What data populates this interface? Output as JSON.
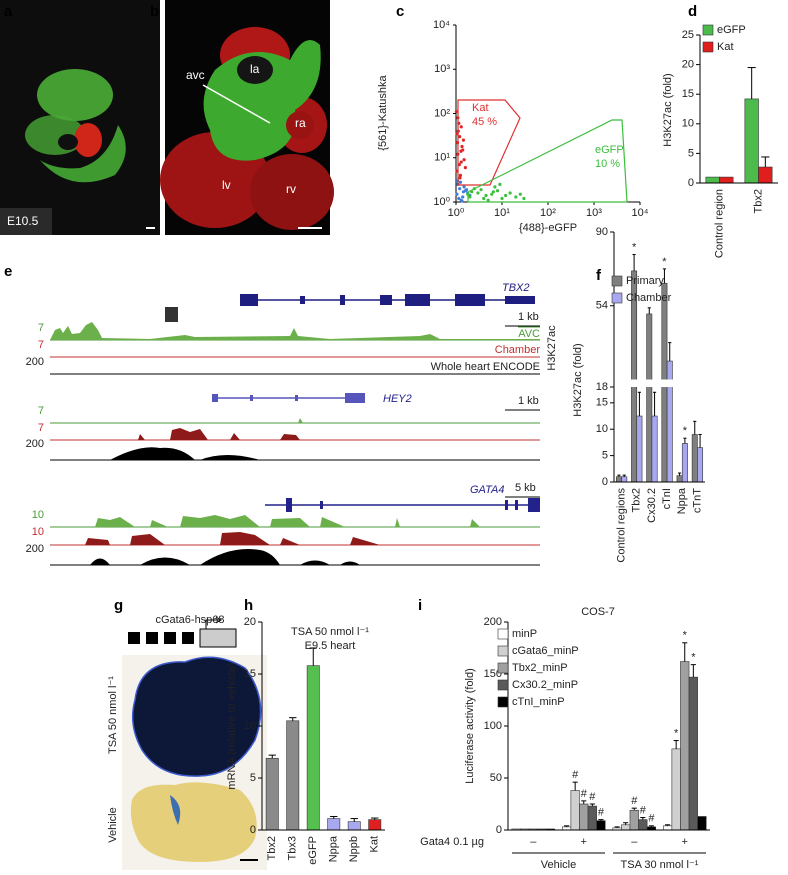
{
  "figure": {
    "panel_labels": [
      "a",
      "b",
      "c",
      "d",
      "e",
      "f",
      "g",
      "h",
      "i"
    ],
    "a": {
      "stage": "E10.5"
    },
    "b": {
      "labels": [
        "avc",
        "la",
        "ra",
        "lv",
        "rv"
      ]
    },
    "e": {
      "loci": [
        {
          "gene": "TBX2",
          "scale": "1 kb",
          "track_max": [
            7,
            7,
            200
          ]
        },
        {
          "gene": "HEY2",
          "scale": "1 kb",
          "track_max": [
            7,
            7,
            200
          ]
        },
        {
          "gene": "GATA4",
          "scale": "5 kb",
          "track_max": [
            10,
            10,
            200
          ]
        }
      ],
      "track_names": [
        "AVC",
        "Chamber",
        "Whole heart ENCODE"
      ],
      "mark": "H3K27ac"
    },
    "g": {
      "construct": "cGata6-hsp68",
      "conditions": [
        "TSA 50 nmol l⁻¹",
        "Vehicle"
      ]
    }
  },
  "chart_data": [
    {
      "type": "scatter",
      "xlabel": "{488}-eGFP",
      "ylabel": "{561}-Katushka",
      "xlog": true,
      "ylog": true,
      "xlim": [
        1,
        10000
      ],
      "ylim": [
        1,
        10000
      ],
      "xticks": [
        {
          "value": 1,
          "label": "10⁰"
        },
        {
          "value": 10,
          "label": "10¹"
        },
        {
          "value": 100,
          "label": "10²"
        },
        {
          "value": 1000,
          "label": "10³"
        },
        {
          "value": 10000,
          "label": "10⁴"
        }
      ],
      "yticks": [
        {
          "value": 1,
          "label": "10⁰"
        },
        {
          "value": 10,
          "label": "10¹"
        },
        {
          "value": 100,
          "label": "10²"
        },
        {
          "value": 1000,
          "label": "10³"
        },
        {
          "value": 10000,
          "label": "10⁴"
        }
      ],
      "series": [
        {
          "color": "#e02424",
          "x": [
            1.05,
            1.1,
            1.2,
            1.3,
            1.15,
            1.4,
            1.08,
            1.25,
            1.5,
            1.12,
            1.35,
            1.02,
            1.18,
            1.45,
            1.22,
            1.3,
            1.1,
            1.6,
            1.28,
            1.06
          ],
          "y": [
            5,
            12,
            30,
            8,
            60,
            15,
            22,
            4,
            9,
            40,
            18,
            110,
            7,
            25,
            3.5,
            50,
            80,
            6,
            14,
            35
          ]
        },
        {
          "color": "#3f7fd8",
          "x": [
            1.05,
            1.2,
            1.4,
            1.6,
            1.1,
            1.3,
            1.8,
            1.5,
            1.15,
            2.0,
            1.25,
            1.7,
            1.35,
            1.08,
            1.45
          ],
          "y": [
            1.5,
            2,
            1.3,
            1.8,
            2.5,
            1.1,
            1.6,
            2.2,
            1.2,
            1.4,
            2.8,
            1.9,
            1.05,
            3,
            1.7
          ]
        },
        {
          "color": "#3cbf3c",
          "x": [
            2,
            3,
            4,
            6,
            8,
            12,
            2.5,
            5,
            15,
            20,
            3.5,
            7,
            10,
            25,
            2.2,
            4.5,
            9,
            30,
            1.8,
            6.5
          ],
          "y": [
            1.3,
            1.6,
            1.2,
            1.5,
            1.8,
            1.4,
            2,
            1.1,
            1.6,
            1.3,
            1.9,
            2.2,
            1.2,
            1.5,
            1.7,
            1.4,
            2.5,
            1.2,
            1.5,
            1.7
          ]
        }
      ],
      "gates": [
        {
          "name": "Kat",
          "label": "45 %",
          "color": "#e03030"
        },
        {
          "name": "eGFP",
          "label": "10 %",
          "color": "#3cbf3c"
        }
      ]
    },
    {
      "type": "bar",
      "ylabel": "H3K27ac (fold)",
      "categories": [
        "Control region",
        "Tbx2"
      ],
      "ylim": [
        0,
        25
      ],
      "yticks": [
        0,
        5,
        10,
        15,
        20,
        25
      ],
      "series": [
        {
          "name": "eGFP",
          "color": "#4cbb4c",
          "values": [
            1,
            14.2
          ],
          "errors": [
            null,
            5.3
          ]
        },
        {
          "name": "Kat",
          "color": "#e01e1e",
          "values": [
            1,
            2.7
          ],
          "errors": [
            null,
            1.7
          ]
        }
      ]
    },
    {
      "type": "bar",
      "ylabel": "H3K27ac (fold)",
      "categories": [
        "Control regions",
        "Tbx2",
        "Cx30.2",
        "cTnI",
        "Nppa",
        "cTnT"
      ],
      "ylim": [
        0,
        90
      ],
      "ybreak": 18,
      "yticks": [
        0,
        5,
        10,
        15,
        18,
        54,
        90
      ],
      "series": [
        {
          "name": "Primary",
          "color": "#7f7f7f",
          "values": [
            1,
            71,
            50,
            65,
            1.2,
            9
          ],
          "errors": [
            0.3,
            8,
            3,
            7,
            0.5,
            2.5
          ],
          "notes": [
            null,
            "*",
            null,
            "*",
            null,
            null
          ]
        },
        {
          "name": "Chamber",
          "color": "#a8a8f0",
          "values": [
            1,
            12.5,
            12.5,
            27,
            7.3,
            6.5
          ],
          "errors": [
            0.3,
            4.5,
            4.5,
            9,
            1,
            2.5
          ],
          "notes": [
            null,
            null,
            null,
            null,
            "*",
            null
          ]
        }
      ]
    },
    {
      "type": "bar",
      "title": [
        "TSA 50 nmol l⁻¹",
        "E9.5 heart"
      ],
      "ylabel": "mRNA (relative to vehicle)",
      "categories": [
        "Tbx2",
        "Tbx3",
        "eGFP",
        "Nppa",
        "Nppb",
        "Kat"
      ],
      "values": [
        6.9,
        10.5,
        15.8,
        1.1,
        0.8,
        1.0
      ],
      "errors": [
        0.3,
        0.3,
        1.7,
        0.2,
        0.3,
        0.15
      ],
      "colors": [
        "#8a8a8a",
        "#8a8a8a",
        "#55c050",
        "#a8a8f0",
        "#a8a8f0",
        "#e02020"
      ],
      "ylim": [
        0,
        20
      ],
      "yticks": [
        0,
        5,
        10,
        15,
        20
      ]
    },
    {
      "type": "bar",
      "title": "COS-7",
      "ylabel": "Luciferase activity (fold)",
      "categories": [
        "–",
        "+",
        "–",
        "+"
      ],
      "row_label": "Gata4 0.1 µg",
      "groups": [
        "Vehicle",
        "TSA 30 nmol l⁻¹"
      ],
      "ylim": [
        0,
        200
      ],
      "yticks": [
        0,
        50,
        100,
        150,
        200
      ],
      "series": [
        {
          "name": "minP",
          "color": "#ffffff",
          "values": [
            1,
            3,
            2,
            4
          ],
          "errors": [
            null,
            1,
            1,
            1
          ],
          "notes": [
            null,
            null,
            null,
            null
          ]
        },
        {
          "name": "cGata6_minP",
          "color": "#d0d0d0",
          "values": [
            1,
            38,
            5,
            78
          ],
          "errors": [
            null,
            8,
            2,
            8
          ],
          "notes": [
            null,
            "#",
            null,
            "*"
          ]
        },
        {
          "name": "Tbx2_minP",
          "color": "#a0a0a0",
          "values": [
            1,
            25,
            19,
            162
          ],
          "errors": [
            null,
            3,
            2,
            18
          ],
          "notes": [
            null,
            "#",
            "#",
            "*"
          ]
        },
        {
          "name": "Cx30.2_minP",
          "color": "#5a5a5a",
          "values": [
            1,
            23,
            10,
            147
          ],
          "errors": [
            null,
            2,
            2,
            12
          ],
          "notes": [
            null,
            "#",
            "#",
            "*"
          ]
        },
        {
          "name": "cTnI_minP",
          "color": "#000000",
          "values": [
            1,
            9,
            3,
            13
          ],
          "errors": [
            null,
            1,
            1,
            null
          ],
          "notes": [
            null,
            "#",
            "#",
            null
          ]
        }
      ]
    }
  ]
}
